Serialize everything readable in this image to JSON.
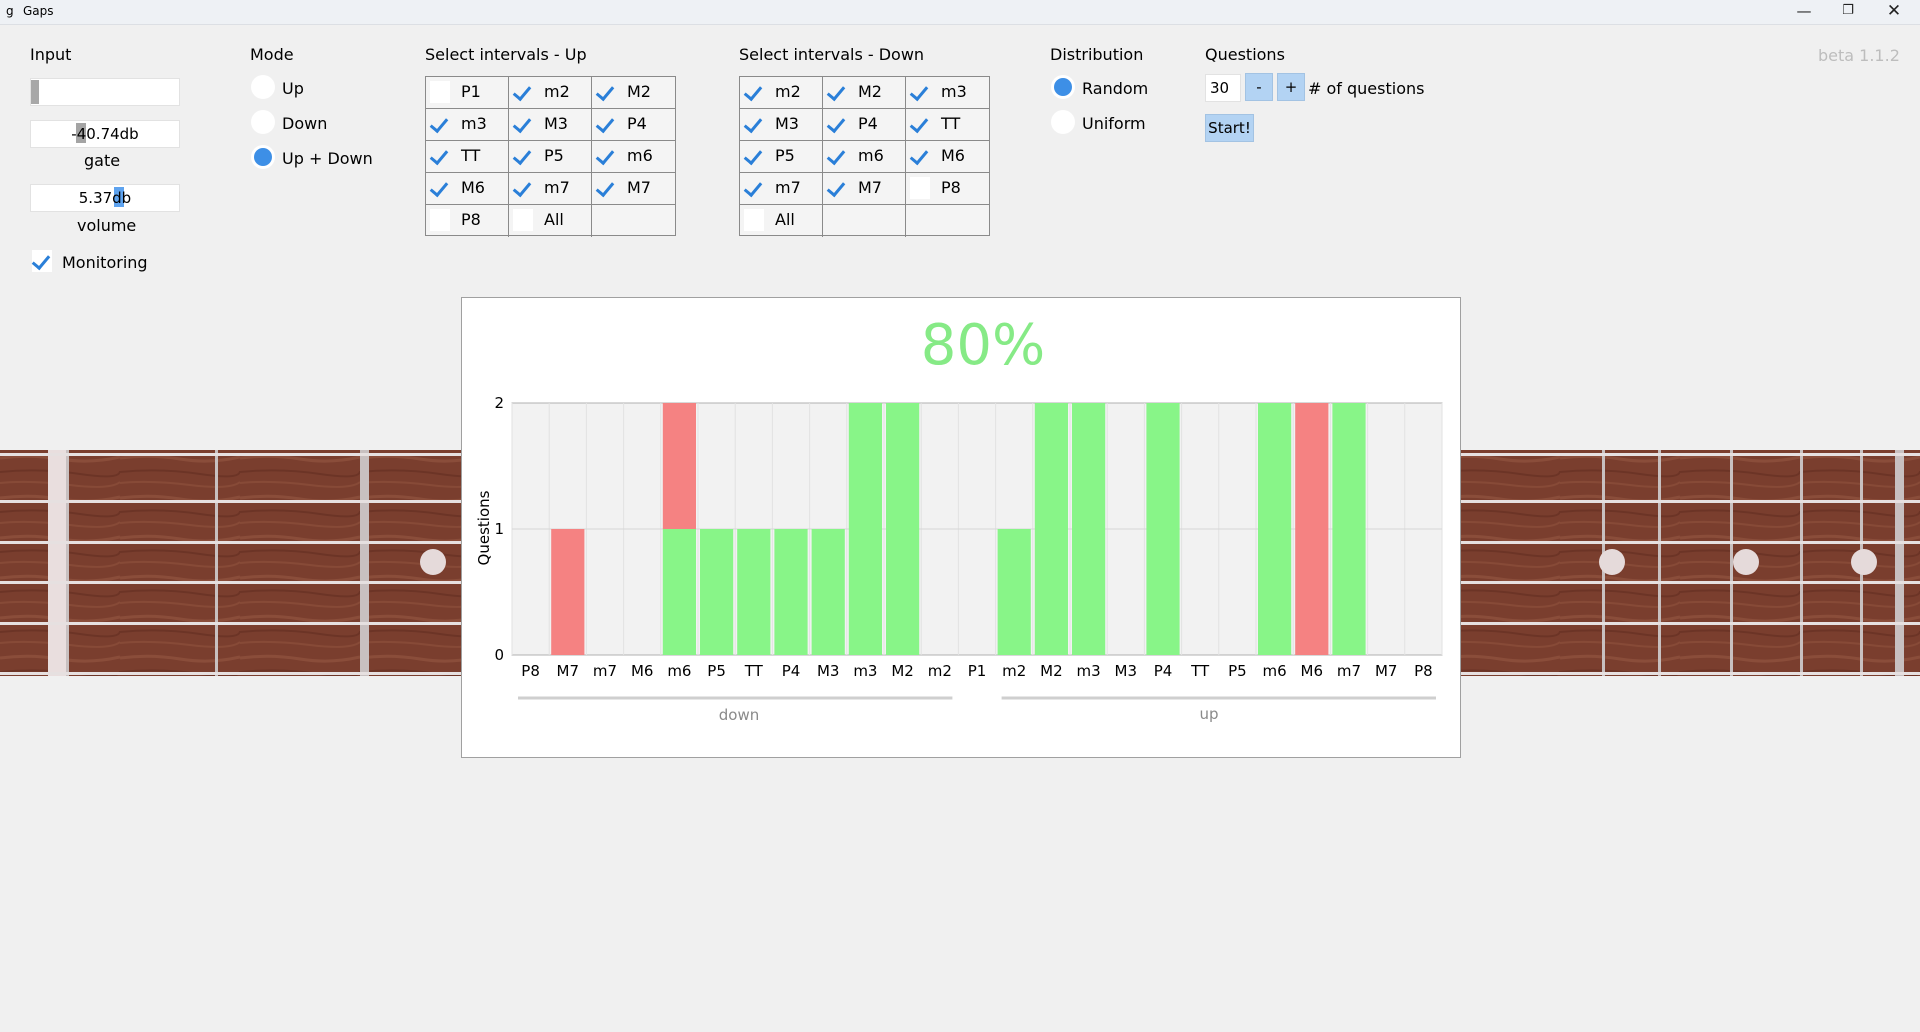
{
  "window": {
    "title": "Gaps",
    "app_icon": "g"
  },
  "version": "beta 1.1.2",
  "input": {
    "label": "Input",
    "gate_value": "-40.74db",
    "gate_label": "gate",
    "volume_value": "5.37db",
    "volume_label": "volume",
    "monitoring_label": "Monitoring",
    "monitoring_checked": true
  },
  "mode": {
    "label": "Mode",
    "options": [
      {
        "label": "Up",
        "selected": false
      },
      {
        "label": "Down",
        "selected": false
      },
      {
        "label": "Up + Down",
        "selected": true
      }
    ]
  },
  "intervals_up": {
    "label": "Select intervals - Up",
    "items": [
      {
        "label": "P1",
        "checked": false
      },
      {
        "label": "m2",
        "checked": true
      },
      {
        "label": "M2",
        "checked": true
      },
      {
        "label": "m3",
        "checked": true
      },
      {
        "label": "M3",
        "checked": true
      },
      {
        "label": "P4",
        "checked": true
      },
      {
        "label": "TT",
        "checked": true
      },
      {
        "label": "P5",
        "checked": true
      },
      {
        "label": "m6",
        "checked": true
      },
      {
        "label": "M6",
        "checked": true
      },
      {
        "label": "m7",
        "checked": true
      },
      {
        "label": "M7",
        "checked": true
      },
      {
        "label": "P8",
        "checked": false
      },
      {
        "label": "All",
        "checked": false
      }
    ]
  },
  "intervals_down": {
    "label": "Select intervals - Down",
    "items": [
      {
        "label": "m2",
        "checked": true
      },
      {
        "label": "M2",
        "checked": true
      },
      {
        "label": "m3",
        "checked": true
      },
      {
        "label": "M3",
        "checked": true
      },
      {
        "label": "P4",
        "checked": true
      },
      {
        "label": "TT",
        "checked": true
      },
      {
        "label": "P5",
        "checked": true
      },
      {
        "label": "m6",
        "checked": true
      },
      {
        "label": "M6",
        "checked": true
      },
      {
        "label": "m7",
        "checked": true
      },
      {
        "label": "M7",
        "checked": true
      },
      {
        "label": "P8",
        "checked": false
      },
      {
        "label": "All",
        "checked": false
      }
    ]
  },
  "distribution": {
    "label": "Distribution",
    "options": [
      {
        "label": "Random",
        "selected": true
      },
      {
        "label": "Uniform",
        "selected": false
      }
    ]
  },
  "questions": {
    "label": "Questions",
    "count": "30",
    "minus_label": "-",
    "plus_label": "+",
    "count_label": "# of questions",
    "start_label": "Start!"
  },
  "colors": {
    "correct": "#88f588",
    "wrong": "#f58282",
    "score": "#86ea86",
    "accent": "#3d8fe6",
    "fret_wood": "#7a3e2e"
  },
  "chart": {
    "score": "80%",
    "ylabel": "Questions",
    "group_down": "down",
    "group_up": "up"
  },
  "chart_data": {
    "type": "bar",
    "stacked": true,
    "categories": [
      "P8",
      "M7",
      "m7",
      "M6",
      "m6",
      "P5",
      "TT",
      "P4",
      "M3",
      "m3",
      "M2",
      "m2",
      "P1",
      "m2",
      "M2",
      "m3",
      "M3",
      "P4",
      "TT",
      "P5",
      "m6",
      "M6",
      "m7",
      "M7",
      "P8"
    ],
    "series": [
      {
        "color": "#88f588",
        "values": [
          0,
          0,
          0,
          0,
          1,
          1,
          1,
          1,
          1,
          2,
          2,
          0,
          0,
          1,
          2,
          2,
          0,
          2,
          0,
          0,
          2,
          0,
          2,
          0,
          0
        ]
      },
      {
        "color": "#f58282",
        "values": [
          0,
          1,
          0,
          0,
          1,
          0,
          0,
          0,
          0,
          0,
          0,
          0,
          0,
          0,
          0,
          0,
          0,
          0,
          0,
          0,
          0,
          2,
          0,
          0,
          0
        ]
      }
    ],
    "ylabel": "Questions",
    "ylim": [
      0,
      2
    ],
    "yticks": [
      "0",
      "1",
      "2"
    ],
    "groups": [
      {
        "label": "down",
        "from": 0,
        "to": 11
      },
      {
        "label": "up",
        "from": 13,
        "to": 24
      }
    ],
    "grid": true
  }
}
